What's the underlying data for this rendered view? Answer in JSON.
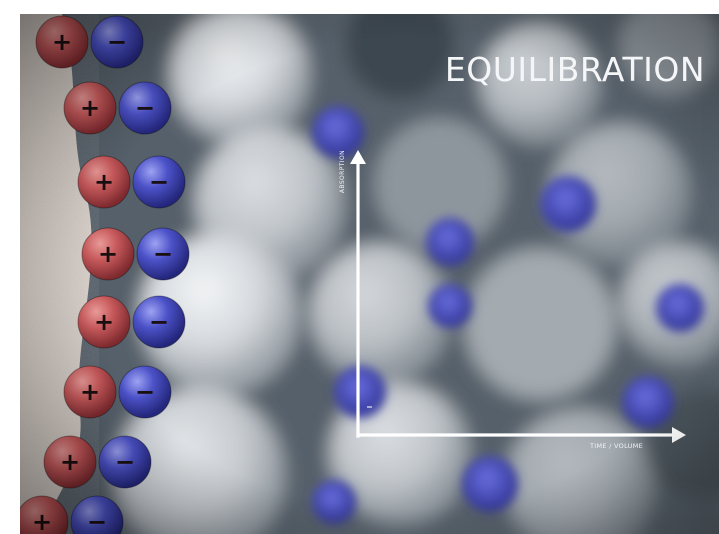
{
  "scene": {
    "title": "EQUILIBRATION",
    "y_axis_label": "ABSORPTION",
    "x_axis_label": "TIME / VOLUME",
    "cation_symbol": "+",
    "anion_symbol": "−",
    "colors": {
      "cation": "#c8545a",
      "anion": "#4a4fc0",
      "resin_bead": "#dcdfe2",
      "background": "#5c6770",
      "membrane": "#d8cfc8",
      "axis": "#ffffff"
    }
  }
}
